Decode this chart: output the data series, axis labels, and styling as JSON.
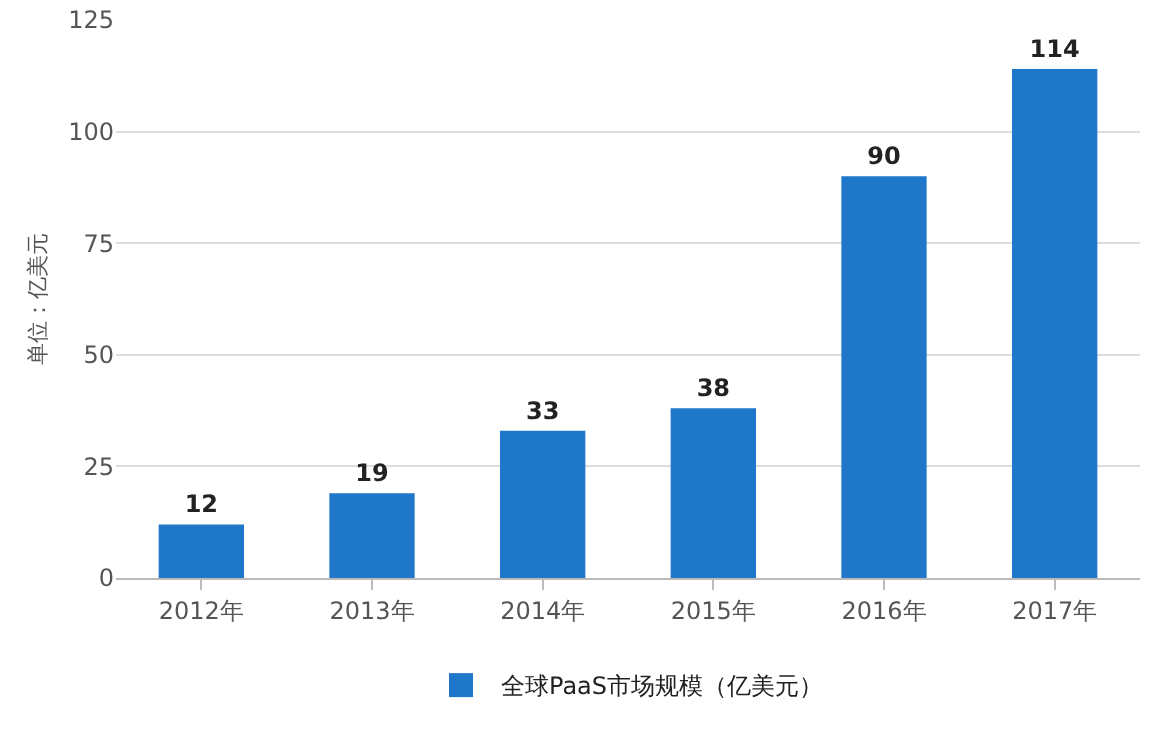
{
  "chart_data": {
    "type": "bar",
    "ylabel": "单位：亿美元",
    "categories": [
      "2012年",
      "2013年",
      "2014年",
      "2015年",
      "2016年",
      "2017年"
    ],
    "series": [
      {
        "name": "全球PaaS市场规模（亿美元）",
        "color": "#1f77c9",
        "values": [
          12,
          19,
          33,
          38,
          90,
          114
        ]
      }
    ],
    "ylim": [
      0,
      125
    ],
    "yticks": [
      0,
      25,
      50,
      75,
      100,
      125
    ],
    "grid": "y",
    "legend": "bottom",
    "data_labels": true
  }
}
